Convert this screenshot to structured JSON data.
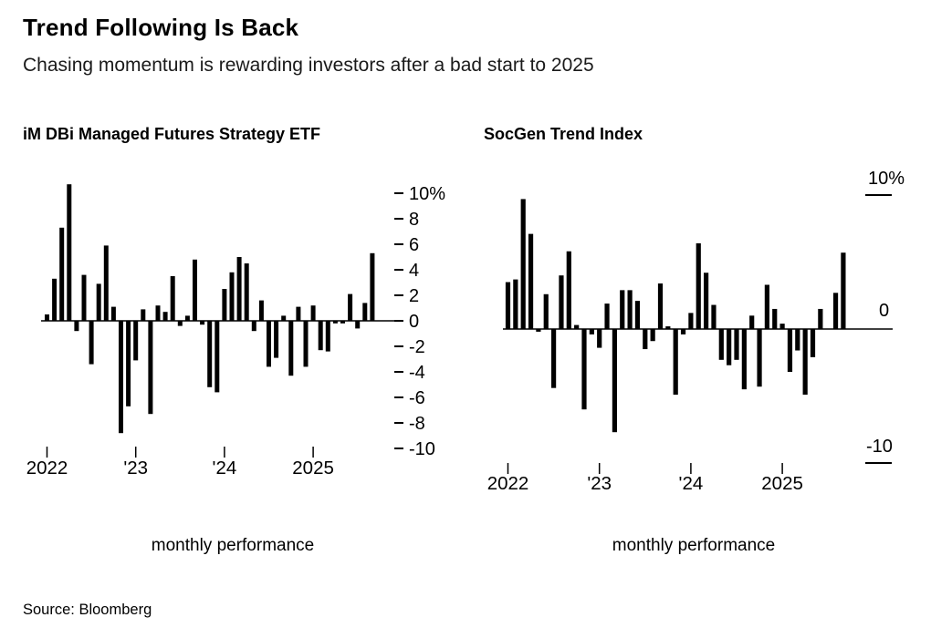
{
  "header": {
    "title": "Trend Following Is Back",
    "subtitle": "Chasing momentum is rewarding investors after a bad start to 2025"
  },
  "source_note": "Source: Bloomberg",
  "colors": {
    "bar": "#000000",
    "background": "#ffffff",
    "text": "#000000"
  },
  "chart_data": [
    {
      "type": "bar",
      "title": "iM DBi Managed Futures Strategy ETF",
      "xlabel": "monthly performance",
      "unit": "percent",
      "x_range": "Jan 2022 to Sep 2025, monthly bars",
      "x_tick_labels": [
        "2022",
        "'23",
        "'24",
        "2025"
      ],
      "x_tick_month_indices": [
        0,
        12,
        24,
        36
      ],
      "y_ticks": [
        10,
        8,
        6,
        4,
        2,
        0,
        -2,
        -4,
        -6,
        -8,
        -10
      ],
      "y_tick_labels": [
        "10%",
        "8",
        "6",
        "4",
        "2",
        "0",
        "-2",
        "-4",
        "-6",
        "-8",
        "-10"
      ],
      "ylim": [
        -10.5,
        11
      ],
      "grid": "off",
      "legend": "none",
      "values": [
        0.5,
        3.3,
        7.3,
        10.7,
        -0.8,
        3.6,
        -3.4,
        2.9,
        5.9,
        1.1,
        -8.8,
        -6.7,
        -3.1,
        0.9,
        -7.3,
        1.2,
        0.7,
        3.5,
        -0.4,
        0.4,
        4.8,
        -0.3,
        -5.2,
        -5.6,
        2.5,
        3.8,
        5.0,
        4.5,
        -0.8,
        1.6,
        -3.6,
        -2.9,
        0.4,
        -4.3,
        1.1,
        -3.6,
        1.2,
        -2.3,
        -2.4,
        -0.2,
        -0.2,
        2.1,
        -0.6,
        1.4,
        5.3
      ]
    },
    {
      "type": "bar",
      "title": "SocGen Trend Index",
      "xlabel": "monthly performance",
      "unit": "percent",
      "x_range": "Jan 2022 to Sep 2025, monthly bars",
      "x_tick_labels": [
        "2022",
        "'23",
        "'24",
        "2025"
      ],
      "x_tick_month_indices": [
        0,
        12,
        24,
        36
      ],
      "y_ticks": [
        10,
        0,
        -10
      ],
      "y_tick_labels": [
        "10%",
        "0",
        "-10"
      ],
      "ylim": [
        -10.5,
        11
      ],
      "grid": "off",
      "legend": "none",
      "values": [
        3.5,
        3.7,
        9.7,
        7.1,
        -0.2,
        2.6,
        -4.4,
        4.0,
        5.8,
        0.3,
        -6.0,
        -0.4,
        -1.4,
        1.9,
        -7.7,
        2.9,
        2.9,
        2.1,
        -1.5,
        -0.9,
        3.4,
        0.2,
        -4.9,
        -0.4,
        1.2,
        6.4,
        4.2,
        1.8,
        -2.3,
        -2.7,
        -2.3,
        -4.5,
        1.0,
        -4.3,
        3.3,
        1.5,
        0.4,
        -3.2,
        -1.6,
        -4.9,
        -2.1,
        1.5,
        0.0,
        2.7,
        5.7
      ]
    }
  ]
}
